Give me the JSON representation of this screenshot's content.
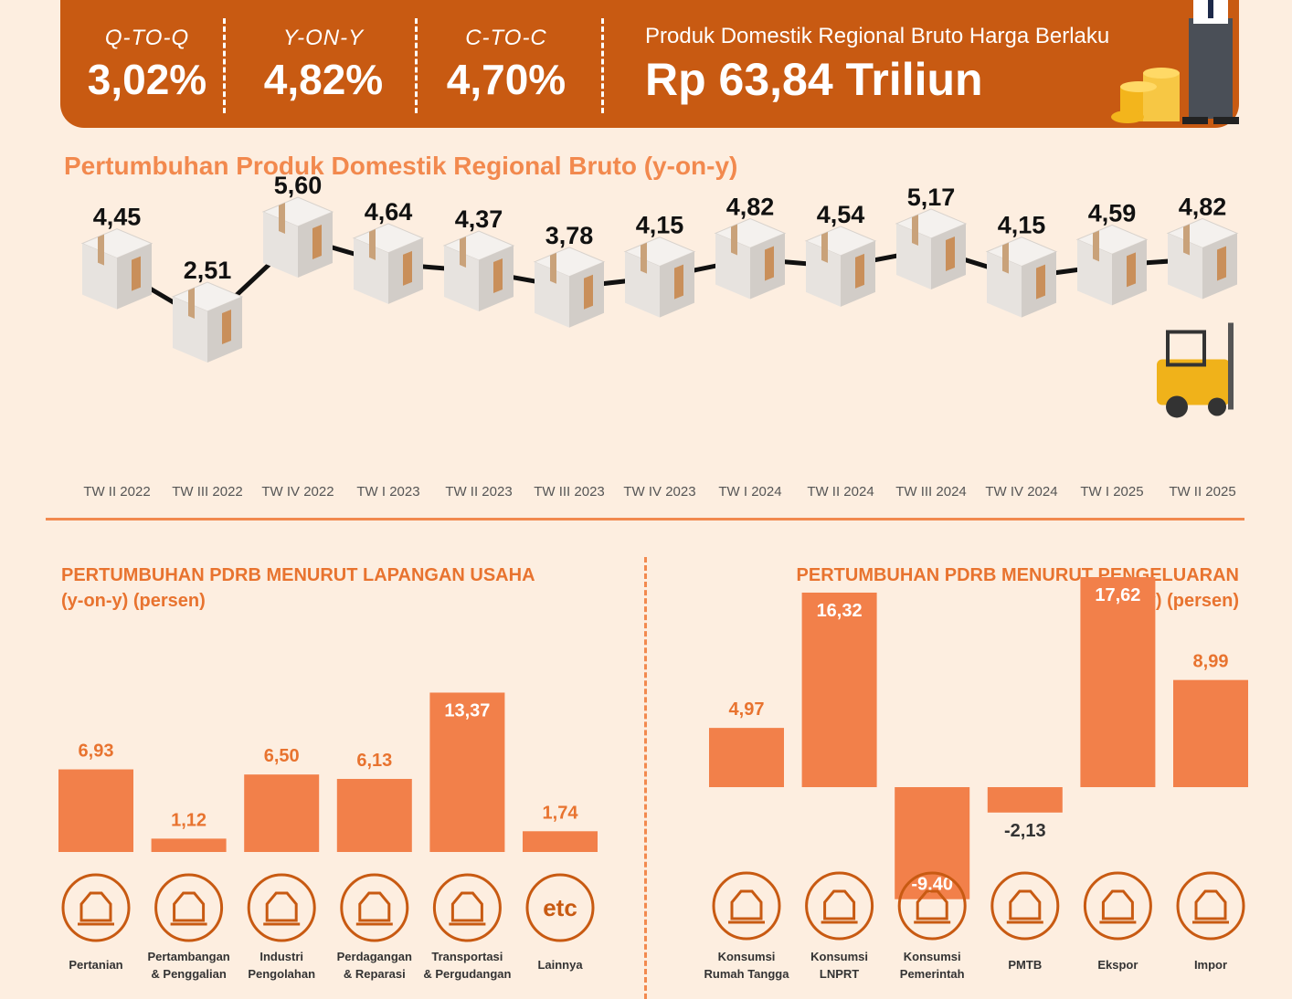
{
  "banner": {
    "stats": [
      {
        "label": "Q-TO-Q",
        "value": "3,02%"
      },
      {
        "label": "Y-ON-Y",
        "value": "4,82%"
      },
      {
        "label": "C-TO-C",
        "value": "4,70%"
      }
    ],
    "pdrb_label": "Produk Domestik Regional Bruto Harga Berlaku",
    "pdrb_value": "Rp 63,84 Triliun"
  },
  "colors": {
    "banner": "#c85a12",
    "bar": "#f2804a",
    "title": "#f2894e",
    "background": "#fdeee0"
  },
  "chart_data": [
    {
      "type": "line",
      "title": "Pertumbuhan Produk Domestik Regional Bruto (y-on-y)",
      "categories": [
        "TW II 2022",
        "TW III 2022",
        "TW IV 2022",
        "TW I 2023",
        "TW II 2023",
        "TW III 2023",
        "TW IV 2023",
        "TW I 2024",
        "TW II 2024",
        "TW III 2024",
        "TW IV 2024",
        "TW I 2025",
        "TW II 2025"
      ],
      "values": [
        4.45,
        2.51,
        5.6,
        4.64,
        4.37,
        3.78,
        4.15,
        4.82,
        4.54,
        5.17,
        4.15,
        4.59,
        4.82
      ],
      "value_labels": [
        "4,45",
        "2,51",
        "5,60",
        "4,64",
        "4,37",
        "3,78",
        "4,15",
        "4,82",
        "4,54",
        "5,17",
        "4,15",
        "4,59",
        "4,82"
      ],
      "marker_icon": "box-icon"
    },
    {
      "type": "bar",
      "title": "PERTUMBUHAN PDRB MENURUT LAPANGAN USAHA",
      "subtitle": "(y-on-y) (persen)",
      "categories": [
        [
          "Pertanian"
        ],
        [
          "Pertambangan",
          "& Penggalian"
        ],
        [
          "Industri",
          "Pengolahan"
        ],
        [
          "Perdagangan",
          "& Reparasi"
        ],
        [
          "Transportasi",
          "& Pergudangan"
        ],
        [
          "Lainnya"
        ]
      ],
      "values": [
        6.93,
        1.12,
        6.5,
        6.13,
        13.37,
        1.74
      ],
      "value_labels": [
        "6,93",
        "1,12",
        "6,50",
        "6,13",
        "13,37",
        "1,74"
      ],
      "icons": [
        "leaf-icon",
        "oil-pump-icon",
        "factory-icon",
        "trade-icon",
        "warehouse-truck-icon",
        "etc-icon"
      ],
      "icon_text": [
        "",
        "",
        "",
        "",
        "",
        "etc"
      ]
    },
    {
      "type": "bar",
      "title": "PERTUMBUHAN PDRB MENURUT PENGELUARAN",
      "subtitle": "(y-on-y) (persen)",
      "categories": [
        [
          "Konsumsi",
          "Rumah Tangga"
        ],
        [
          "Konsumsi",
          "LNPRT"
        ],
        [
          "Konsumsi",
          "Pemerintah"
        ],
        [
          "PMTB"
        ],
        [
          "Ekspor"
        ],
        [
          "Impor"
        ]
      ],
      "values": [
        4.97,
        16.32,
        -9.4,
        -2.13,
        17.62,
        8.99
      ],
      "value_labels": [
        "4,97",
        "16,32",
        "-9,40",
        "-2,13",
        "17,62",
        "8,99"
      ],
      "icons": [
        "household-consumption-icon",
        "person-icon",
        "government-building-icon",
        "robot-arm-icon",
        "export-ship-icon",
        "import-ship-icon"
      ]
    }
  ]
}
